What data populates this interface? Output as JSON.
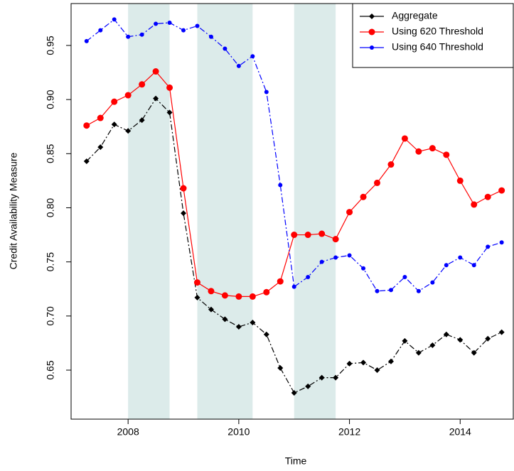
{
  "chart_data": {
    "type": "line",
    "xlabel": "Time",
    "ylabel": "Credit Availability Measure",
    "x": [
      2007.25,
      2007.5,
      2007.75,
      2008,
      2008.25,
      2008.5,
      2008.75,
      2009,
      2009.25,
      2009.5,
      2009.75,
      2010,
      2010.25,
      2010.5,
      2010.75,
      2011,
      2011.25,
      2011.5,
      2011.75,
      2012,
      2012.25,
      2012.5,
      2012.75,
      2013,
      2013.25,
      2013.5,
      2013.75,
      2014,
      2014.25,
      2014.5,
      2014.75
    ],
    "series": [
      {
        "name": "Aggregate",
        "color": "#000000",
        "marker": "diamond",
        "values": [
          0.843,
          0.856,
          0.877,
          0.871,
          0.881,
          0.901,
          0.888,
          0.795,
          0.717,
          0.706,
          0.697,
          0.69,
          0.694,
          0.683,
          0.652,
          0.629,
          0.635,
          0.643,
          0.643,
          0.656,
          0.657,
          0.65,
          0.658,
          0.677,
          0.666,
          0.673,
          0.683,
          0.678,
          0.666,
          0.679,
          0.685
        ]
      },
      {
        "name": "Using 620 Threshold",
        "color": "#ff0000",
        "marker": "circle",
        "values": [
          0.876,
          0.883,
          0.898,
          0.904,
          0.914,
          0.926,
          0.911,
          0.818,
          0.731,
          0.723,
          0.719,
          0.718,
          0.718,
          0.722,
          0.732,
          0.775,
          0.775,
          0.776,
          0.771,
          0.796,
          0.81,
          0.823,
          0.84,
          0.864,
          0.852,
          0.855,
          0.849,
          0.825,
          0.803,
          0.81,
          0.816
        ]
      },
      {
        "name": "Using 640 Threshold",
        "color": "#0000ff",
        "marker": "circle",
        "values": [
          0.954,
          0.964,
          0.974,
          0.958,
          0.96,
          0.97,
          0.971,
          0.964,
          0.968,
          0.958,
          0.947,
          0.931,
          0.94,
          0.907,
          0.821,
          0.727,
          0.736,
          0.75,
          0.754,
          0.756,
          0.744,
          0.723,
          0.724,
          0.736,
          0.723,
          0.731,
          0.747,
          0.754,
          0.747,
          0.764,
          0.768
        ]
      }
    ],
    "shaded_regions": [
      [
        2008,
        2008.75
      ],
      [
        2009.25,
        2010.25
      ],
      [
        2011,
        2011.75
      ]
    ],
    "shade_color": "#dcebea",
    "xlim": [
      2006.97,
      2014.96
    ],
    "ylim": [
      0.6047,
      0.9887
    ],
    "xticks": [
      2008,
      2010,
      2012,
      2014
    ],
    "yticks": [
      0.65,
      {
        "value": 0.7,
        "label": "0.70"
      },
      0.75,
      {
        "value": 0.8,
        "label": "0.80"
      },
      0.85,
      {
        "value": 0.9,
        "label": "0.90"
      },
      0.95
    ],
    "legend": "topright"
  }
}
